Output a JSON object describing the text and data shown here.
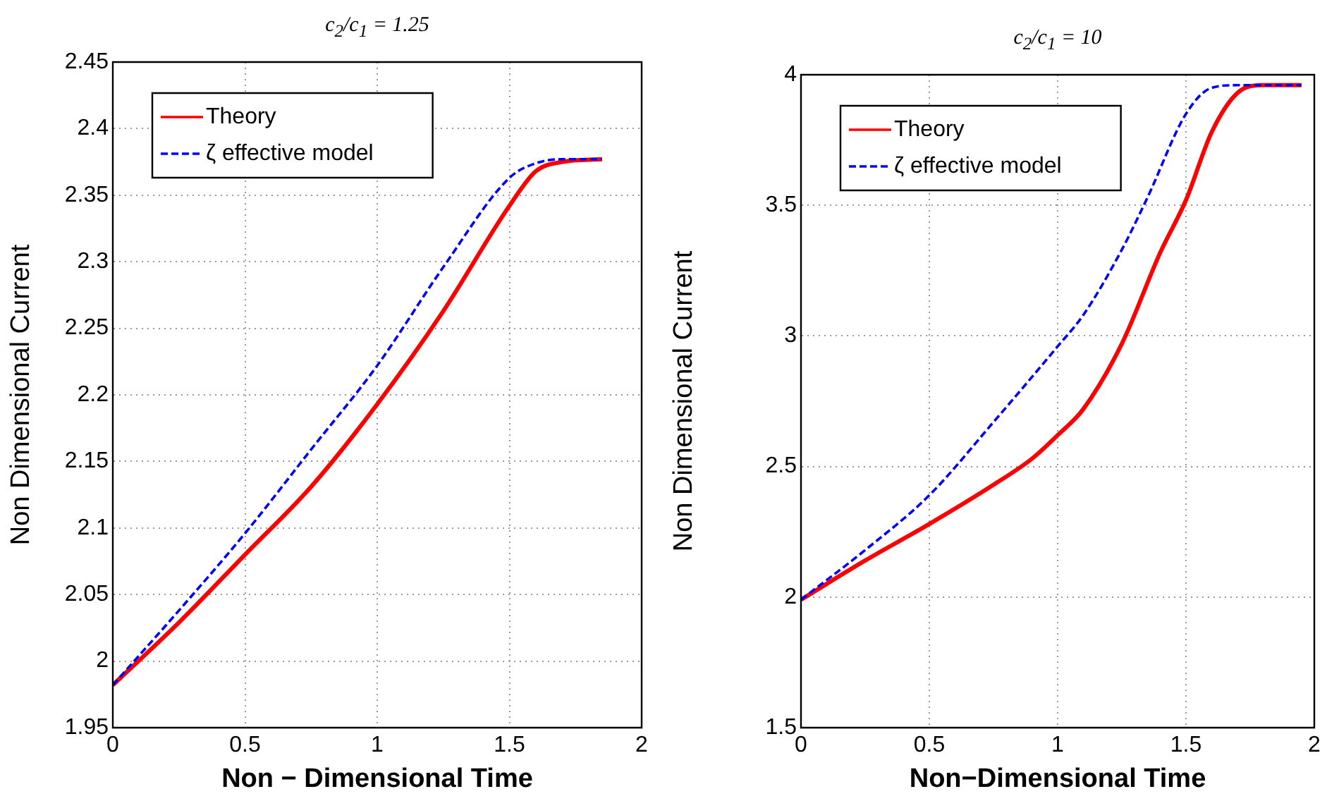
{
  "chart_data": [
    {
      "type": "line",
      "title": "c$_{2}$/c$_{1}$ = 1.25",
      "xlabel": "Non − Dimensional Time",
      "ylabel": "Non Dimensional Current",
      "xlim": [
        0,
        2
      ],
      "xticks": [
        0,
        0.5,
        1,
        1.5,
        2
      ],
      "ylim": [
        1.95,
        2.45
      ],
      "yticks": [
        1.95,
        2,
        2.05,
        2.1,
        2.15,
        2.2,
        2.25,
        2.3,
        2.35,
        2.4,
        2.45
      ],
      "grid": true,
      "legend": "top left",
      "marker": "none",
      "series": [
        {
          "name": "Theory",
          "color": "#ff0000",
          "line_style": "solid",
          "x": [
            0,
            0.25,
            0.5,
            0.75,
            1,
            1.25,
            1.5,
            1.6,
            1.7,
            1.85
          ],
          "values": [
            1.982,
            2.029,
            2.08,
            2.131,
            2.193,
            2.263,
            2.342,
            2.368,
            2.375,
            2.377
          ]
        },
        {
          "name": "ζ effective model",
          "color": "#0000ff",
          "line_style": "dashed",
          "x": [
            0,
            0.25,
            0.5,
            0.75,
            1,
            1.25,
            1.5,
            1.6,
            1.7,
            1.85
          ],
          "values": [
            1.982,
            2.038,
            2.096,
            2.159,
            2.222,
            2.296,
            2.363,
            2.374,
            2.377,
            2.377
          ]
        }
      ]
    },
    {
      "type": "line",
      "title": "c$_{2}$/c$_{1}$ = 10",
      "xlabel": "Non−Dimensional Time",
      "ylabel": "Non Dimensional Current",
      "xlim": [
        0,
        2
      ],
      "xticks": [
        0,
        0.5,
        1,
        1.5,
        2
      ],
      "ylim": [
        1.5,
        4
      ],
      "yticks": [
        1.5,
        2,
        2.5,
        3,
        3.5,
        4
      ],
      "grid": true,
      "legend": "top left",
      "marker": "none",
      "series": [
        {
          "name": "Theory",
          "color": "#ff0000",
          "line_style": "solid",
          "x": [
            0,
            0.25,
            0.5,
            0.75,
            0.9,
            1,
            1.1,
            1.25,
            1.4,
            1.5,
            1.6,
            1.7,
            1.8,
            1.95
          ],
          "values": [
            1.99,
            2.14,
            2.28,
            2.43,
            2.53,
            2.62,
            2.72,
            2.97,
            3.32,
            3.52,
            3.78,
            3.93,
            3.96,
            3.96
          ]
        },
        {
          "name": "ζ effective model",
          "color": "#0000ff",
          "line_style": "dashed",
          "x": [
            0,
            0.25,
            0.5,
            0.75,
            1,
            1.1,
            1.25,
            1.35,
            1.5,
            1.6,
            1.7,
            1.95
          ],
          "values": [
            1.99,
            2.18,
            2.39,
            2.67,
            2.96,
            3.08,
            3.33,
            3.53,
            3.85,
            3.95,
            3.96,
            3.96
          ]
        }
      ]
    }
  ]
}
